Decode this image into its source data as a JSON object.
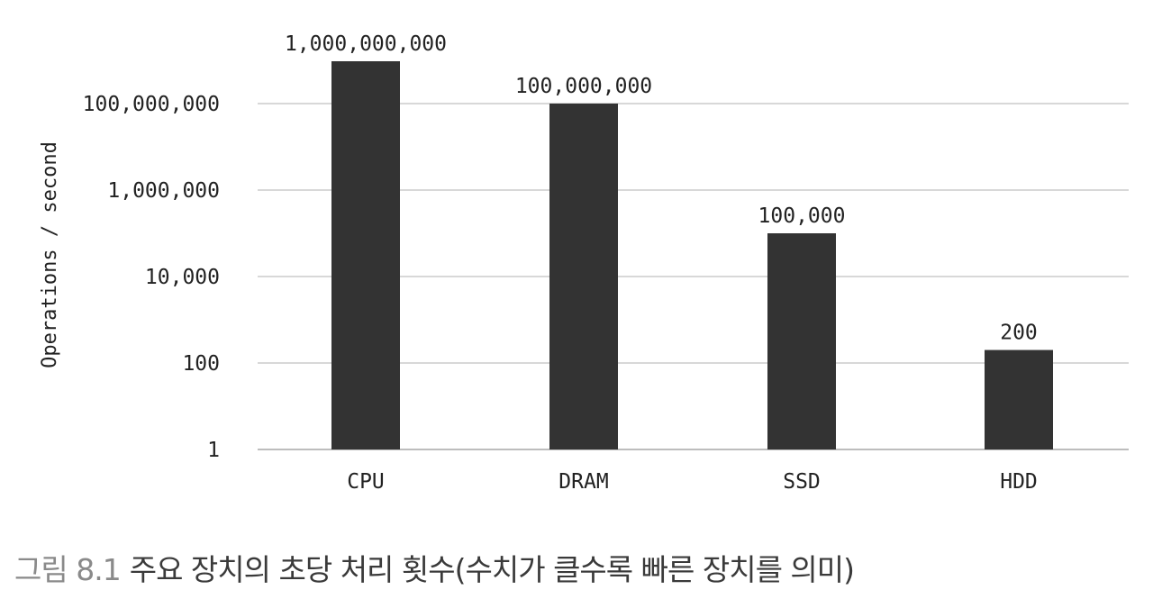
{
  "chart_data": {
    "type": "bar",
    "categories": [
      "CPU",
      "DRAM",
      "SSD",
      "HDD"
    ],
    "values": [
      1000000000,
      100000000,
      100000,
      200
    ],
    "data_labels": [
      "1,000,000,000",
      "100,000,000",
      "100,000",
      "200"
    ],
    "ylabel": "Operations / second",
    "xlabel": "",
    "yscale": "log",
    "ylim": [
      1,
      1000000000
    ],
    "yticks": [
      1,
      100,
      10000,
      1000000,
      100000000
    ],
    "ytick_labels": [
      "1",
      "100",
      "10,000",
      "1,000,000",
      "100,000,000"
    ],
    "grid": true,
    "legend": "none",
    "bar_color": "#333333",
    "grid_color": "#d8d8d8"
  },
  "caption": {
    "label": "그림 8.1",
    "text": "주요 장치의 초당 처리 횟수(수치가 클수록 빠른 장치를 의미)"
  }
}
